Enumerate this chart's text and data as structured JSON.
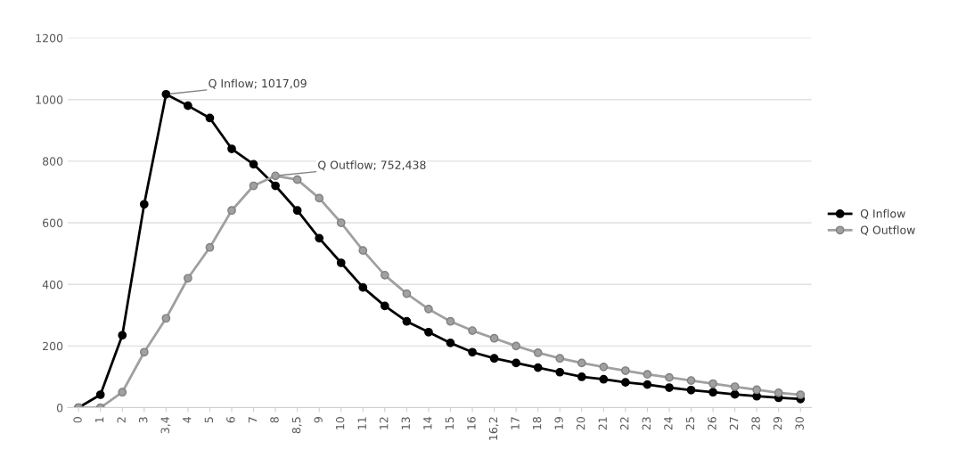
{
  "chart_data": {
    "type": "line",
    "categories": [
      "0",
      "1",
      "2",
      "3",
      "3,4",
      "4",
      "5",
      "6",
      "7",
      "8",
      "8,5",
      "9",
      "10",
      "11",
      "12",
      "13",
      "14",
      "15",
      "16",
      "16,2",
      "17",
      "18",
      "19",
      "20",
      "21",
      "22",
      "23",
      "24",
      "25",
      "26",
      "27",
      "28",
      "29",
      "30"
    ],
    "series": [
      {
        "name": "Q Inflow",
        "color": "#000000",
        "values": [
          0,
          42,
          235,
          660,
          1017.09,
          980,
          940,
          840,
          790,
          720,
          640,
          550,
          470,
          390,
          330,
          280,
          245,
          210,
          180,
          160,
          145,
          130,
          115,
          100,
          92,
          82,
          75,
          65,
          57,
          50,
          43,
          37,
          32,
          28
        ]
      },
      {
        "name": "Q Outflow",
        "color": "#a0a0a0",
        "values": [
          0,
          0,
          50,
          180,
          290,
          420,
          520,
          640,
          720,
          752.438,
          740,
          680,
          600,
          510,
          430,
          370,
          320,
          280,
          250,
          225,
          200,
          178,
          160,
          145,
          132,
          120,
          108,
          98,
          88,
          78,
          68,
          58,
          48,
          42
        ]
      }
    ],
    "ylim": [
      0,
      1200
    ],
    "yticks": [
      0,
      200,
      400,
      600,
      800,
      1000,
      1200
    ],
    "grid": "y",
    "legend": "right",
    "marker": "circle",
    "line_style": "solid",
    "annotations": [
      {
        "text": "Q Inflow; 1017,09",
        "x": "3,4",
        "y": 1017.09
      },
      {
        "text": "Q Outflow; 752,438",
        "x": "8",
        "y": 752.438
      }
    ]
  }
}
